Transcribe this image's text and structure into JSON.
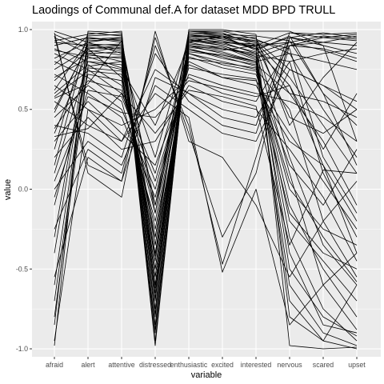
{
  "chart_data": {
    "type": "line",
    "title": "Laodings of Communal def.A for dataset MDD BPD TRULL",
    "xlabel": "variable",
    "ylabel": "value",
    "categories": [
      "afraid",
      "alert",
      "attentive",
      "distressed",
      "enthusiastic",
      "excited",
      "interested",
      "nervous",
      "scared",
      "upset"
    ],
    "ylim": [
      -1.05,
      1.05
    ],
    "yticks": [
      1.0,
      0.5,
      0.0,
      -0.5,
      -1.0
    ],
    "ytick_labels": [
      "1.0",
      "0.5",
      "0.0",
      "-0.5",
      "-1.0"
    ],
    "grid": true,
    "panel_background": "#ebebeb",
    "grid_color": "#ffffff",
    "line_color": "#000000",
    "series": [
      {
        "values": [
          0.99,
          0.92,
          0.95,
          -0.35,
          0.99,
          0.98,
          0.9,
          0.98,
          0.95,
          0.93
        ]
      },
      {
        "values": [
          0.97,
          0.88,
          0.9,
          -0.1,
          0.97,
          0.95,
          0.88,
          0.95,
          0.9,
          0.85
        ]
      },
      {
        "values": [
          0.95,
          0.85,
          0.8,
          0.2,
          0.95,
          0.92,
          0.85,
          0.92,
          0.87,
          0.8
        ]
      },
      {
        "values": [
          0.92,
          0.9,
          0.88,
          -0.5,
          0.94,
          0.9,
          0.82,
          0.9,
          0.92,
          0.96
        ]
      },
      {
        "values": [
          0.9,
          0.95,
          0.92,
          -0.6,
          0.96,
          0.96,
          0.87,
          0.96,
          0.6,
          0.4
        ]
      },
      {
        "values": [
          0.88,
          0.8,
          0.75,
          0.4,
          0.9,
          0.85,
          0.8,
          0.85,
          0.5,
          0.2
        ]
      },
      {
        "values": [
          0.85,
          0.75,
          0.6,
          0.1,
          0.88,
          0.82,
          0.78,
          0.6,
          0.3,
          -0.1
        ]
      },
      {
        "values": [
          0.82,
          0.92,
          0.85,
          -0.45,
          0.92,
          0.88,
          0.84,
          0.8,
          0.1,
          -0.3
        ]
      },
      {
        "values": [
          0.8,
          0.7,
          0.55,
          -0.2,
          0.85,
          0.8,
          0.75,
          0.5,
          -0.2,
          -0.55
        ]
      },
      {
        "values": [
          0.78,
          0.96,
          0.97,
          -0.8,
          0.98,
          0.97,
          0.92,
          0.7,
          0.4,
          0.1
        ]
      },
      {
        "values": [
          0.75,
          0.88,
          0.7,
          -0.3,
          0.93,
          0.95,
          0.95,
          0.4,
          0.7,
          0.92
        ]
      },
      {
        "values": [
          0.72,
          0.6,
          0.45,
          -0.05,
          0.8,
          0.7,
          0.65,
          0.3,
          0.15,
          -0.4
        ]
      },
      {
        "values": [
          0.7,
          0.82,
          0.83,
          -0.65,
          0.9,
          0.87,
          0.9,
          0.2,
          -0.35,
          -0.6
        ]
      },
      {
        "values": [
          0.65,
          0.5,
          0.4,
          0.5,
          0.7,
          0.6,
          0.55,
          0.9,
          0.95,
          0.97
        ]
      },
      {
        "values": [
          0.62,
          0.93,
          0.94,
          -0.55,
          0.96,
          0.93,
          0.88,
          0.65,
          0.25,
          0.6
        ]
      },
      {
        "values": [
          0.6,
          0.78,
          0.65,
          -0.15,
          0.87,
          0.84,
          0.79,
          -0.1,
          -0.5,
          -0.8
        ]
      },
      {
        "values": [
          0.55,
          0.4,
          0.3,
          0.75,
          0.6,
          0.5,
          0.45,
          0.8,
          0.85,
          0.88
        ]
      },
      {
        "values": [
          0.5,
          0.9,
          0.91,
          -0.7,
          0.94,
          0.91,
          0.86,
          0.1,
          -0.6,
          -0.88
        ]
      },
      {
        "values": [
          0.45,
          0.65,
          0.5,
          0.0,
          0.78,
          0.7,
          0.68,
          0.35,
          0.05,
          -0.25
        ]
      },
      {
        "values": [
          0.4,
          0.35,
          0.2,
          0.85,
          0.55,
          0.4,
          0.35,
          0.95,
          0.98,
          0.95
        ]
      },
      {
        "values": [
          0.35,
          0.86,
          0.89,
          -0.75,
          0.93,
          0.9,
          0.83,
          -0.3,
          -0.75,
          -0.95
        ]
      },
      {
        "values": [
          0.3,
          0.55,
          0.35,
          0.15,
          0.72,
          0.65,
          0.6,
          0.55,
          0.45,
          0.3
        ]
      },
      {
        "values": [
          0.25,
          0.98,
          0.96,
          -0.9,
          0.99,
          0.99,
          0.94,
          0.85,
          0.8,
          0.75
        ]
      },
      {
        "values": [
          0.2,
          0.45,
          0.25,
          0.3,
          0.65,
          0.55,
          0.5,
          0.25,
          -0.05,
          -0.45
        ]
      },
      {
        "values": [
          0.1,
          0.8,
          0.78,
          -0.4,
          0.89,
          0.86,
          0.8,
          -0.4,
          -0.85,
          -0.9
        ]
      },
      {
        "values": [
          0.0,
          0.3,
          0.15,
          0.65,
          0.5,
          0.35,
          0.3,
          0.75,
          0.65,
          0.5
        ]
      },
      {
        "values": [
          -0.1,
          0.72,
          0.68,
          -0.25,
          0.85,
          0.78,
          0.74,
          0.05,
          -0.3,
          -0.58
        ]
      },
      {
        "values": [
          -0.25,
          0.25,
          0.1,
          0.9,
          0.4,
          -0.47,
          0.2,
          0.9,
          0.88,
          0.82
        ]
      },
      {
        "values": [
          -0.4,
          0.85,
          0.86,
          -0.6,
          0.91,
          0.89,
          0.81,
          -0.2,
          -0.45,
          -0.7
        ]
      },
      {
        "values": [
          -0.55,
          0.2,
          0.05,
          0.95,
          0.35,
          -0.3,
          0.1,
          0.95,
          0.92,
          0.9
        ]
      },
      {
        "values": [
          -0.7,
          0.77,
          0.8,
          -0.5,
          0.88,
          0.83,
          0.77,
          -0.6,
          -0.9,
          -0.98
        ]
      },
      {
        "values": [
          -0.85,
          0.95,
          0.93,
          -0.85,
          0.97,
          0.94,
          0.89,
          -0.8,
          -0.95,
          -1.0
        ]
      },
      {
        "values": [
          -0.98,
          0.99,
          0.98,
          -0.98,
          1.0,
          1.0,
          0.97,
          -0.98,
          -1.0,
          -0.99
        ]
      },
      {
        "values": [
          -0.95,
          0.5,
          0.3,
          0.6,
          0.45,
          -0.52,
          0.0,
          -0.85,
          -0.6,
          -0.4
        ]
      },
      {
        "values": [
          0.98,
          0.1,
          -0.05,
          0.99,
          0.3,
          0.2,
          -0.1,
          -0.55,
          -0.2,
          0.05
        ]
      },
      {
        "values": [
          0.96,
          0.15,
          0.05,
          0.7,
          0.6,
          0.45,
          0.4,
          0.98,
          0.97,
          0.98
        ]
      },
      {
        "values": [
          0.93,
          0.97,
          0.99,
          -0.95,
          0.99,
          0.97,
          0.96,
          0.93,
          0.6,
          0.15
        ]
      },
      {
        "values": [
          0.87,
          0.83,
          0.76,
          -0.3,
          0.92,
          0.96,
          0.93,
          0.88,
          0.2,
          -0.15
        ]
      },
      {
        "values": [
          0.68,
          0.87,
          0.84,
          -0.68,
          0.95,
          0.92,
          0.91,
          0.45,
          0.35,
          0.5
        ]
      },
      {
        "values": [
          0.58,
          0.74,
          0.72,
          -0.35,
          0.83,
          0.76,
          0.72,
          0.15,
          -0.1,
          0.25
        ]
      },
      {
        "values": [
          0.48,
          0.91,
          0.9,
          -0.78,
          0.96,
          0.95,
          0.92,
          0.6,
          0.55,
          0.45
        ]
      },
      {
        "values": [
          0.38,
          0.68,
          0.62,
          -0.1,
          0.82,
          0.79,
          0.76,
          0.0,
          -0.25,
          -0.35
        ]
      },
      {
        "values": [
          0.15,
          0.94,
          0.95,
          -0.88,
          0.98,
          0.96,
          0.93,
          0.75,
          0.65,
          0.55
        ]
      },
      {
        "values": [
          -0.05,
          0.62,
          0.58,
          0.05,
          0.76,
          0.72,
          0.69,
          -0.15,
          -0.4,
          -0.5
        ]
      },
      {
        "values": [
          -0.3,
          0.89,
          0.87,
          -0.62,
          0.93,
          0.92,
          0.9,
          0.92,
          0.96,
          0.94
        ]
      },
      {
        "values": [
          -0.6,
          0.84,
          0.82,
          -0.55,
          0.9,
          0.88,
          0.85,
          -0.5,
          -0.8,
          -0.92
        ]
      },
      {
        "values": [
          -0.8,
          0.76,
          0.74,
          -0.42,
          0.86,
          0.84,
          0.8,
          -0.7,
          -0.95,
          -0.6
        ]
      },
      {
        "values": [
          0.57,
          0.66,
          0.93,
          -0.15,
          0.99,
          0.99,
          0.99,
          0.99,
          0.9,
          0.3
        ]
      },
      {
        "values": [
          0.33,
          0.38,
          0.6,
          0.35,
          0.62,
          0.58,
          0.52,
          -0.35,
          0.12,
          0.1
        ]
      },
      {
        "values": [
          0.05,
          0.58,
          0.48,
          0.45,
          0.68,
          0.63,
          0.58,
          0.65,
          0.15,
          -0.2
        ]
      }
    ]
  }
}
